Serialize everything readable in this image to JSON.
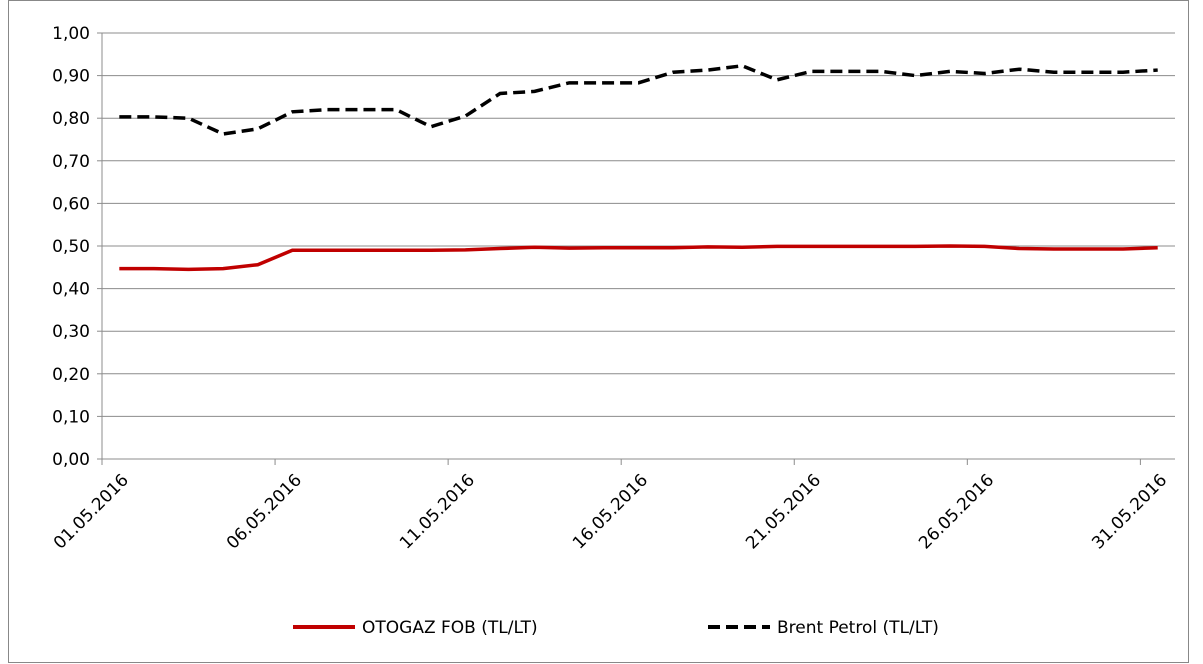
{
  "chart_data": {
    "type": "line",
    "categories": [
      "01.05.2016",
      null,
      null,
      null,
      null,
      "06.05.2016",
      null,
      null,
      null,
      null,
      "11.05.2016",
      null,
      null,
      null,
      null,
      "16.05.2016",
      null,
      null,
      null,
      null,
      "21.05.2016",
      null,
      null,
      null,
      null,
      "26.05.2016",
      null,
      null,
      null,
      null,
      "31.05.2016"
    ],
    "series": [
      {
        "name": "OTOGAZ FOB (TL/LT)",
        "color": "#c00000",
        "dash": false,
        "values": [
          0.447,
          0.447,
          0.445,
          0.447,
          0.456,
          0.49,
          0.49,
          0.49,
          0.49,
          0.49,
          0.491,
          0.494,
          0.497,
          0.495,
          0.496,
          0.496,
          0.496,
          0.498,
          0.497,
          0.499,
          0.499,
          0.499,
          0.499,
          0.499,
          0.5,
          0.499,
          0.494,
          0.493,
          0.493,
          0.493,
          0.496
        ]
      },
      {
        "name": "Brent Petrol (TL/LT)",
        "color": "#000000",
        "dash": true,
        "values": [
          0.803,
          0.803,
          0.8,
          0.763,
          0.775,
          0.815,
          0.82,
          0.82,
          0.82,
          0.78,
          0.805,
          0.858,
          0.863,
          0.883,
          0.883,
          0.883,
          0.908,
          0.913,
          0.923,
          0.89,
          0.91,
          0.91,
          0.91,
          0.9,
          0.91,
          0.905,
          0.915,
          0.908,
          0.908,
          0.908,
          0.913
        ]
      }
    ],
    "ylim": [
      0,
      1
    ],
    "yticks": [
      {
        "value": 0,
        "label": "0,00"
      },
      {
        "value": 0.1,
        "label": "0,10"
      },
      {
        "value": 0.2,
        "label": "0,20"
      },
      {
        "value": 0.3,
        "label": "0,30"
      },
      {
        "value": 0.4,
        "label": "0,40"
      },
      {
        "value": 0.5,
        "label": "0,50"
      },
      {
        "value": 0.6,
        "label": "0,60"
      },
      {
        "value": 0.7,
        "label": "0,70"
      },
      {
        "value": 0.8,
        "label": "0,80"
      },
      {
        "value": 0.9,
        "label": "0,90"
      },
      {
        "value": 1,
        "label": "1,00"
      }
    ],
    "grid": true,
    "legend": "bottom"
  }
}
